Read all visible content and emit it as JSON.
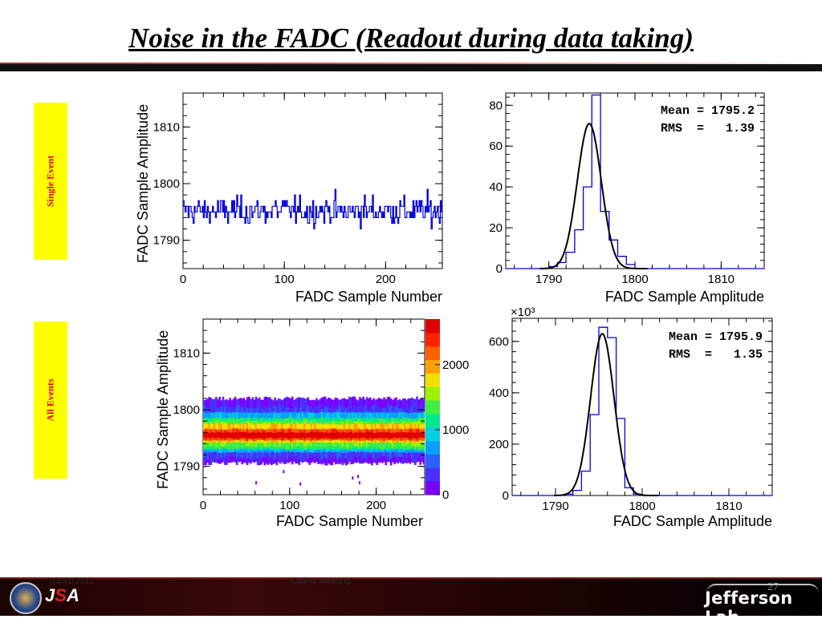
{
  "slide": {
    "title": "Noise in the FADC (Readout during data taking)",
    "row_labels": {
      "single": "Single Event",
      "all": "All  Events"
    },
    "footer": {
      "date": "03/31/2012",
      "center": "CalPol Meeting",
      "page": "27",
      "logo": "Jefferson Lab",
      "jsa": {
        "left": "J",
        "mid": "S",
        "right": "A"
      }
    },
    "colors": {
      "accent_red": "#8a1010",
      "label_bg": "#ffff00",
      "label_text": "#e00000",
      "series_blue": "#0000dd"
    }
  },
  "chart_data": [
    {
      "type": "line",
      "name": "single_event_trace",
      "xlabel": "FADC Sample Number",
      "ylabel": "FADC Sample Amplitude",
      "xlim": [
        0,
        256
      ],
      "ylim": [
        1785,
        1816
      ],
      "xticks": [
        0,
        100,
        200
      ],
      "yticks": [
        1790,
        1800,
        1810
      ],
      "grid": false,
      "noise": {
        "mean": 1795.2,
        "rms": 1.39,
        "samples": 256
      }
    },
    {
      "type": "bar",
      "name": "single_event_histogram",
      "xlabel": "FADC Sample Amplitude",
      "xlim": [
        1785,
        1815
      ],
      "ylim": [
        0,
        86
      ],
      "xticks": [
        1790,
        1800,
        1810
      ],
      "yticks": [
        0,
        20,
        40,
        60,
        80
      ],
      "bin_edges": [
        1790,
        1791,
        1792,
        1793,
        1794,
        1795,
        1796,
        1797,
        1798,
        1799,
        1800
      ],
      "values": [
        1,
        3,
        8,
        19,
        40,
        85,
        28,
        14,
        6,
        2
      ],
      "fit": {
        "type": "gaussian",
        "mean": 1795.2,
        "sigma": 1.39,
        "amplitude": 71
      },
      "stats": {
        "mean": "Mean = 1795.2",
        "rms": "RMS  =   1.39"
      }
    },
    {
      "type": "heatmap",
      "name": "all_events_2d",
      "xlabel": "FADC Sample Number",
      "ylabel": "FADC Sample Amplitude",
      "xlim": [
        0,
        256
      ],
      "ylim": [
        1785,
        1816
      ],
      "xticks": [
        0,
        100,
        200
      ],
      "yticks": [
        1790,
        1800,
        1810
      ],
      "colorbar": {
        "range": [
          0,
          2700
        ],
        "ticks": [
          0,
          1000,
          2000
        ]
      },
      "band": {
        "center": 1795.9,
        "rms": 1.35,
        "low": 1790.5,
        "high": 1802
      }
    },
    {
      "type": "bar",
      "name": "all_events_histogram",
      "xlabel": "FADC Sample Amplitude",
      "xlim": [
        1785,
        1815
      ],
      "ylim": [
        0,
        690
      ],
      "xticks": [
        1790,
        1800,
        1810
      ],
      "yticks": [
        0,
        200,
        400,
        600
      ],
      "y_multiplier": "×10³",
      "bin_edges": [
        1790,
        1791,
        1792,
        1793,
        1794,
        1795,
        1796,
        1797,
        1798,
        1799,
        1800
      ],
      "values": [
        1,
        5,
        20,
        95,
        315,
        655,
        615,
        300,
        30,
        5
      ],
      "fit": {
        "type": "gaussian",
        "mean": 1795.9,
        "sigma": 1.35,
        "amplitude": 630
      },
      "stats": {
        "mean": "Mean = 1795.9",
        "rms": "RMS  =   1.35"
      }
    }
  ]
}
